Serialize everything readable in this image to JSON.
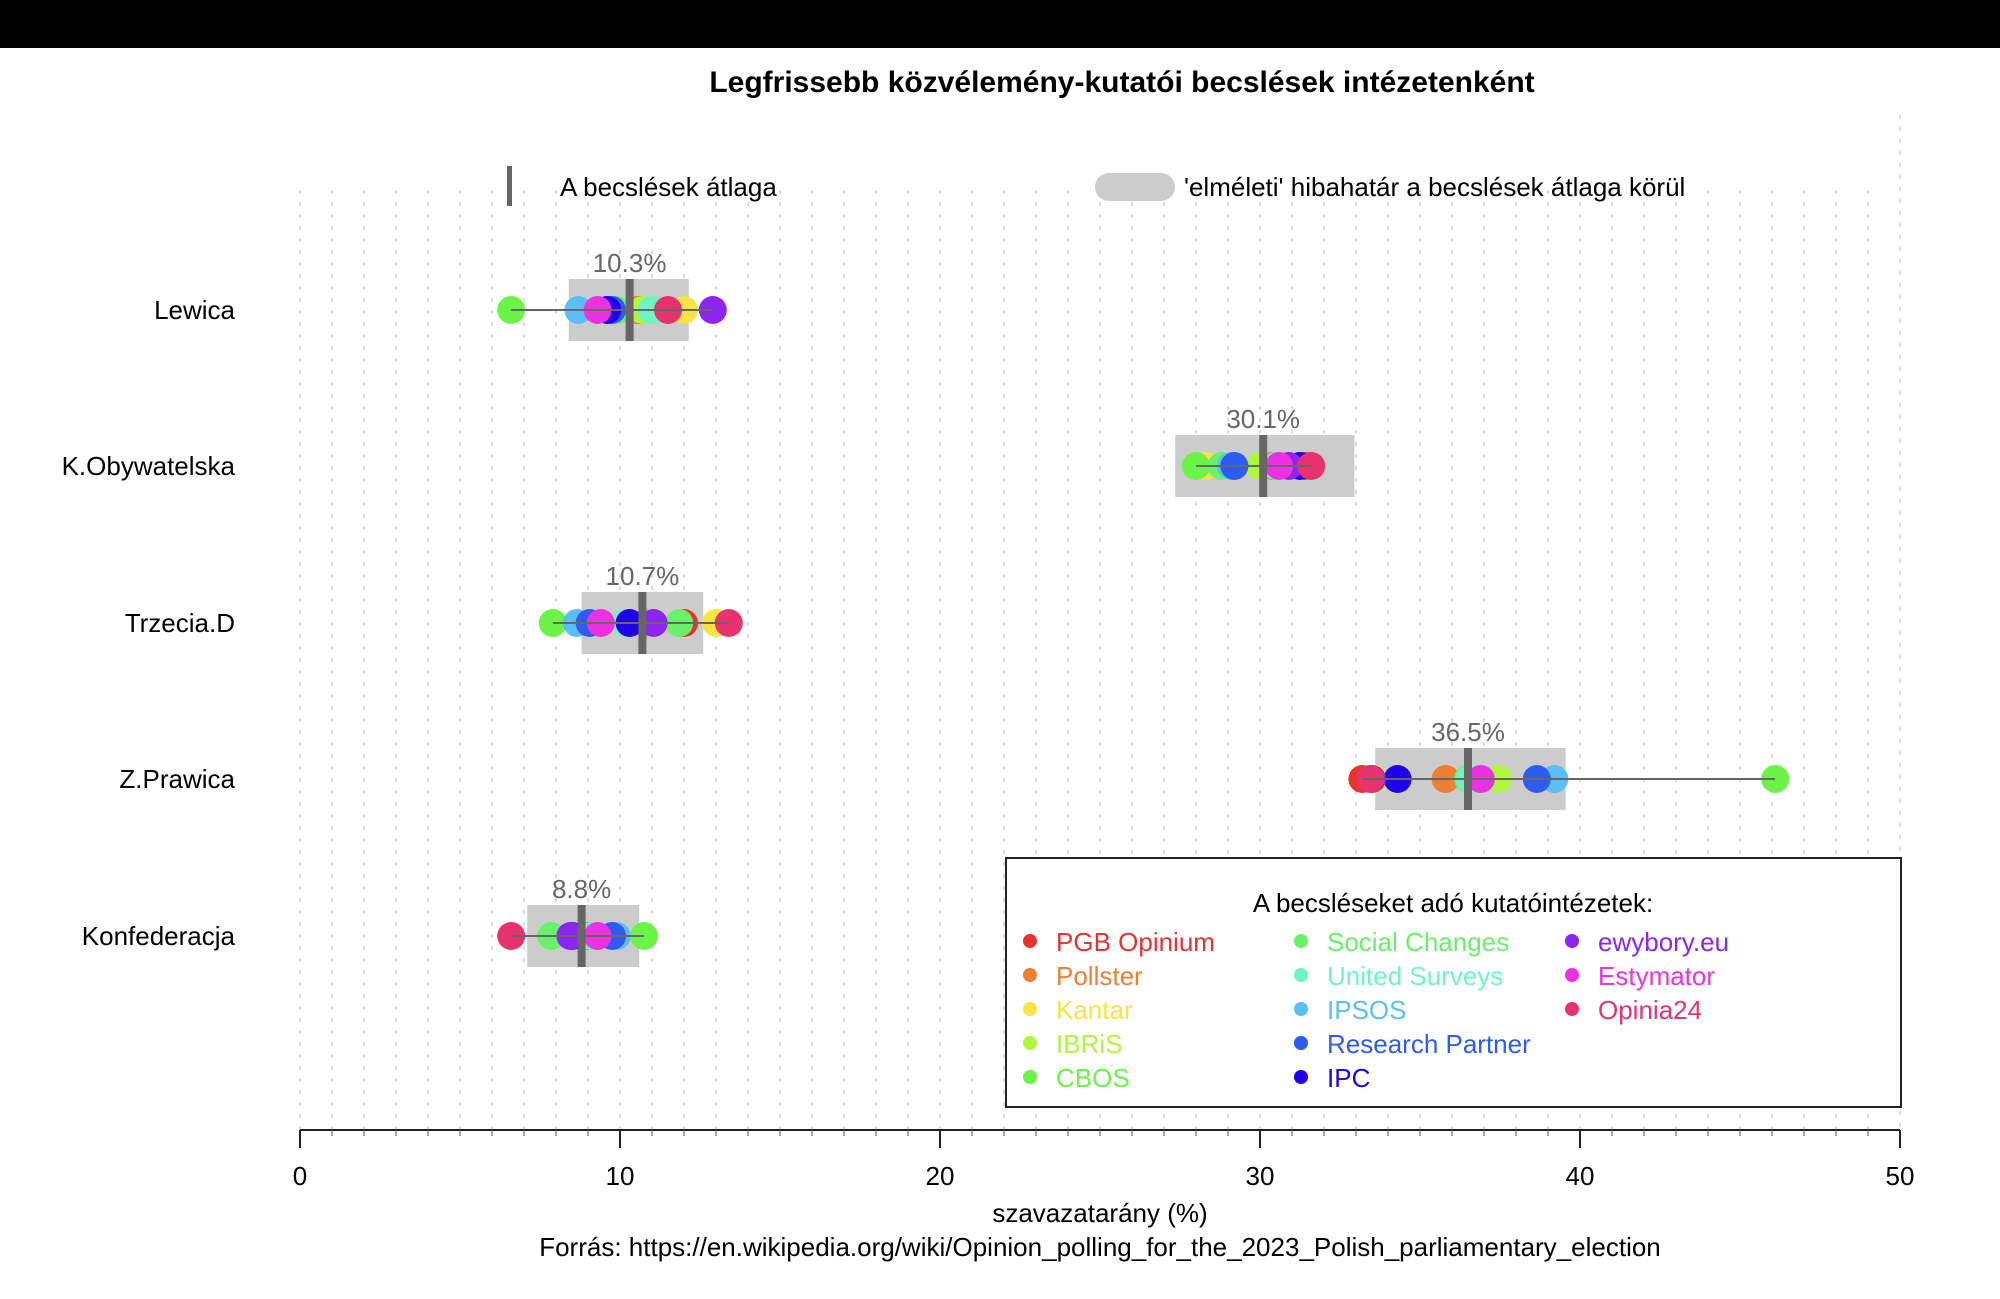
{
  "chart_data": {
    "type": "scatter",
    "title": "Legfrissebb közvélemény-kutatói becslések intézetenként",
    "xlabel": "szavazatarány (%)",
    "source": "Forrás: https://en.wikipedia.org/wiki/Opinion_polling_for_the_2023_Polish_parliamentary_election",
    "xlim": [
      0,
      50
    ],
    "xticks": [
      "0",
      "10",
      "20",
      "30",
      "40",
      "50"
    ],
    "xtick_values": [
      0,
      10,
      20,
      30,
      40,
      50
    ],
    "grid": "vertical dotted, every 1 unit",
    "top_legend": {
      "mean_label": "A becslések átlaga",
      "margin_label": "'elméleti' hibahatár a becslések átlaga körül"
    },
    "legend": {
      "title": "A becsléseket adó kutatóintézetek:",
      "position": "bottom-right",
      "items": [
        {
          "name": "PGB Opinium",
          "color": "#E8322E"
        },
        {
          "name": "Pollster",
          "color": "#EE7F33"
        },
        {
          "name": "Kantar",
          "color": "#F9E345"
        },
        {
          "name": "IBRiS",
          "color": "#B0F53E"
        },
        {
          "name": "CBOS",
          "color": "#6CF347"
        },
        {
          "name": "Social Changes",
          "color": "#6AF06A"
        },
        {
          "name": "United Surveys",
          "color": "#6EF5C5"
        },
        {
          "name": "IPSOS",
          "color": "#5BBEF5"
        },
        {
          "name": "Research Partner",
          "color": "#2E5BF0"
        },
        {
          "name": "IPC",
          "color": "#2000EA"
        },
        {
          "name": "ewybory.eu",
          "color": "#8E24F0"
        },
        {
          "name": "Estymator",
          "color": "#EC32E0"
        },
        {
          "name": "Opinia24",
          "color": "#E83270"
        }
      ]
    },
    "parties": [
      {
        "name": "Lewica",
        "mean": 10.3,
        "mean_label": "10.3%",
        "margin": [
          8.4,
          12.15
        ],
        "values": {
          "PGB Opinium": 10.6,
          "Pollster": 10.5,
          "Kantar": 12.0,
          "IBRiS": 10.7,
          "CBOS": 6.6,
          "Social Changes": 9.9,
          "United Surveys": 11.0,
          "IPSOS": 8.7,
          "Research Partner": 9.75,
          "IPC": 9.6,
          "ewybory.eu": 12.9,
          "Estymator": 9.3,
          "Opinia24": 11.5
        }
      },
      {
        "name": "K.Obywatelska",
        "mean": 30.1,
        "mean_label": "30.1%",
        "margin": [
          27.35,
          32.95
        ],
        "values": {
          "PGB Opinium": 31.4,
          "Pollster": 30.4,
          "Kantar": 28.3,
          "IBRiS": 30.0,
          "CBOS": 28.0,
          "Social Changes": 28.8,
          "United Surveys": 30.5,
          "IPSOS": 29.1,
          "Research Partner": 29.2,
          "IPC": 31.25,
          "ewybory.eu": 30.9,
          "Estymator": 30.6,
          "Opinia24": 31.6
        }
      },
      {
        "name": "Trzecia.D",
        "mean": 10.7,
        "mean_label": "10.7%",
        "margin": [
          8.8,
          12.6
        ],
        "values": {
          "PGB Opinium": 12.0,
          "Pollster": 10.8,
          "Kantar": 13.0,
          "IBRiS": 11.0,
          "CBOS": 7.9,
          "Social Changes": 11.85,
          "United Surveys": 10.15,
          "IPSOS": 8.65,
          "Research Partner": 9.05,
          "IPC": 10.3,
          "ewybory.eu": 11.05,
          "Estymator": 9.4,
          "Opinia24": 13.4
        }
      },
      {
        "name": "Z.Prawica",
        "mean": 36.5,
        "mean_label": "36.5%",
        "margin": [
          33.6,
          39.55
        ],
        "values": {
          "PGB Opinium": 33.2,
          "Pollster": 35.8,
          "Kantar": 33.6,
          "IBRiS": 37.45,
          "CBOS": 46.1,
          "Social Changes": 36.5,
          "United Surveys": 36.55,
          "IPSOS": 39.2,
          "Research Partner": 38.65,
          "IPC": 34.3,
          "ewybory.eu": 33.5,
          "Estymator": 36.9,
          "Opinia24": 33.45
        }
      },
      {
        "name": "Konfederacja",
        "mean": 8.8,
        "mean_label": "8.8%",
        "margin": [
          7.1,
          10.6
        ],
        "values": {
          "PGB Opinium": 9.0,
          "Pollster": 8.9,
          "Kantar": 8.7,
          "IBRiS": 9.2,
          "CBOS": 10.75,
          "Social Changes": 7.85,
          "United Surveys": 9.1,
          "IPSOS": 9.9,
          "Research Partner": 9.75,
          "IPC": 8.5,
          "ewybory.eu": 8.45,
          "Estymator": 9.3,
          "Opinia24": 6.6
        }
      }
    ]
  }
}
